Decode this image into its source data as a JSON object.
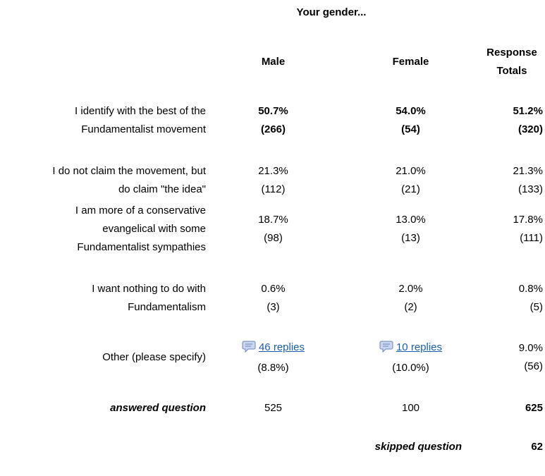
{
  "header": {
    "title": "Your gender...",
    "columns": [
      "Male",
      "Female",
      "Response Totals"
    ]
  },
  "rows": [
    {
      "label_lines": [
        "I identify with the best of the",
        "Fundamentalist movement"
      ],
      "cells": [
        [
          "50.7%",
          "(266)"
        ],
        [
          "54.0%",
          "(54)"
        ],
        [
          "51.2%",
          "(320)"
        ]
      ]
    },
    {
      "label_lines": [
        "I do not claim the movement, but",
        "do claim \"the idea\""
      ],
      "cells": [
        [
          "21.3%",
          "(112)"
        ],
        [
          "21.0%",
          "(21)"
        ],
        [
          "21.3%",
          "(133)"
        ]
      ]
    },
    {
      "label_lines": [
        "I am more of a conservative",
        "evangelical with some",
        "Fundamentalist sympathies"
      ],
      "cells": [
        [
          "18.7%",
          "(98)"
        ],
        [
          "13.0%",
          "(13)"
        ],
        [
          "17.8%",
          "(111)"
        ]
      ]
    },
    {
      "label_lines": [
        "I want nothing to do with",
        "Fundamentalism"
      ],
      "cells": [
        [
          "0.6%",
          "(3)"
        ],
        [
          "2.0%",
          "(2)"
        ],
        [
          "0.8%",
          "(5)"
        ]
      ]
    },
    {
      "label_lines": [
        "Other (please specify)"
      ],
      "cells": [
        [
          "46 replies",
          "(8.8%)"
        ],
        [
          "10 replies",
          "(10.0%)"
        ],
        [
          "9.0%",
          "(56)"
        ]
      ]
    }
  ],
  "answered": {
    "label": "answered question",
    "values": [
      "525",
      "100",
      "625"
    ]
  },
  "skipped": {
    "label": "skipped question",
    "value": "62"
  }
}
